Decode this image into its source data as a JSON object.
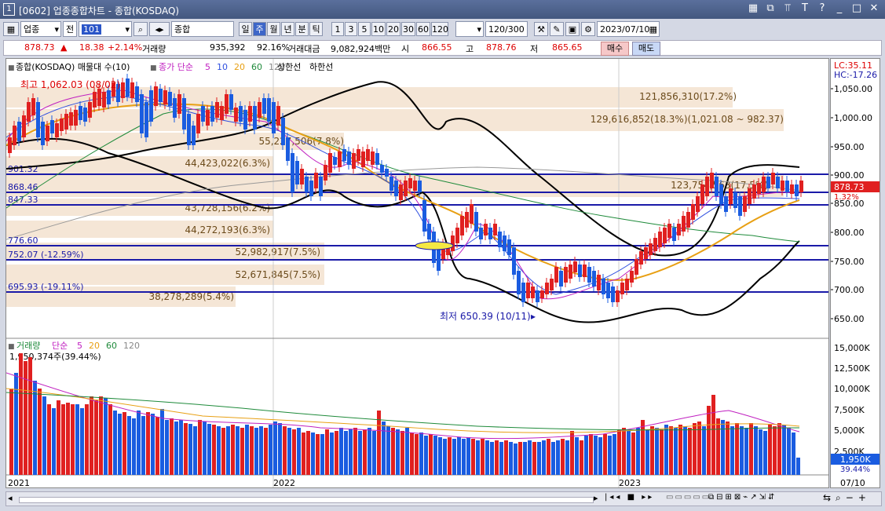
{
  "window": {
    "num": "1",
    "title": "[0602] 업종종합차트 - 종합(KOSDAQ)",
    "controls": [
      "▦",
      "⧉",
      "⫪",
      "T",
      "?",
      "_",
      "□",
      "✕"
    ]
  },
  "toolbar": {
    "market": "업종",
    "period_type": "전",
    "code": "101",
    "index_name": "종합(KOSDAQ)",
    "timeframes": [
      "일",
      "주",
      "월",
      "년",
      "분",
      "틱"
    ],
    "selected_timeframe": "주",
    "periods": [
      "1",
      "3",
      "5",
      "10",
      "20",
      "30",
      "60",
      "120"
    ],
    "count": "120/300",
    "date": "2023/07/10"
  },
  "quote": {
    "price": "878.73",
    "arrow": "▲",
    "change": "18.38",
    "pct": "+2.14%",
    "vol_label": "거래량",
    "volume": "935,392",
    "vol_pct": "92.16%",
    "amount_label": "거래대금",
    "amount": "9,082,924백만",
    "open_label": "시",
    "open": "866.55",
    "high_label": "고",
    "high": "878.76",
    "low_label": "저",
    "low": "865.65",
    "buy": "매수",
    "sell": "매도"
  },
  "chart": {
    "legend_name": "종합(KOSDAQ) 매물대 수(10)",
    "legend_ma": "종가 단순",
    "ma": [
      "5",
      "10",
      "20",
      "60",
      "120"
    ],
    "legend_upper": "상한선",
    "legend_lower": "하한선",
    "lc": "LC:35.11",
    "hc": "HC:-17.26",
    "max_label": "최고 1,062.03 (08/02)",
    "min_label": "최저 650.39 (10/11)",
    "price_axis": [
      "1,050.00",
      "1,000.00",
      "950.00",
      "900.00",
      "850.00",
      "800.00",
      "750.00",
      "700.00",
      "650.00"
    ],
    "current_price": "878.73",
    "current_pct": "1.32%",
    "hlines": [
      {
        "label": "901.32"
      },
      {
        "label": "868.46"
      },
      {
        "label": "847.33"
      },
      {
        "label": "776.60"
      },
      {
        "label": "752.07 (-12.59%)"
      },
      {
        "label": "695.93 (-19.11%)"
      }
    ],
    "volume_profile": [
      {
        "label": "121,856,310(17.2%)"
      },
      {
        "label": "129,616,852(18.3%)(1,021.08 ~ 982.37)"
      },
      {
        "label": "55,227,506(7.8%)"
      },
      {
        "label": "44,423,022(6.3%)"
      },
      {
        "label": "123,754,563(17.5%)"
      },
      {
        "label": "43,728,156(6.2%)"
      },
      {
        "label": "44,272,193(6.3%)"
      },
      {
        "label": "52,982,917(7.5%)"
      },
      {
        "label": "52,671,845(7.5%)"
      },
      {
        "label": "38,278,289(5.4%)"
      }
    ],
    "year_labels": [
      "2021",
      "2022",
      "2023"
    ],
    "last_date": "07/10"
  },
  "volume_panel": {
    "legend": "거래량",
    "legend_ma": "단순",
    "ma": [
      "5",
      "20",
      "60",
      "120"
    ],
    "max_label": "1,950,374주(39.44%)",
    "axis": [
      "15,000K",
      "12,500K",
      "10,000K",
      "7,500K",
      "5,000K",
      "2,500K"
    ],
    "current": "1,950K",
    "current_pct": "39.44%"
  }
}
